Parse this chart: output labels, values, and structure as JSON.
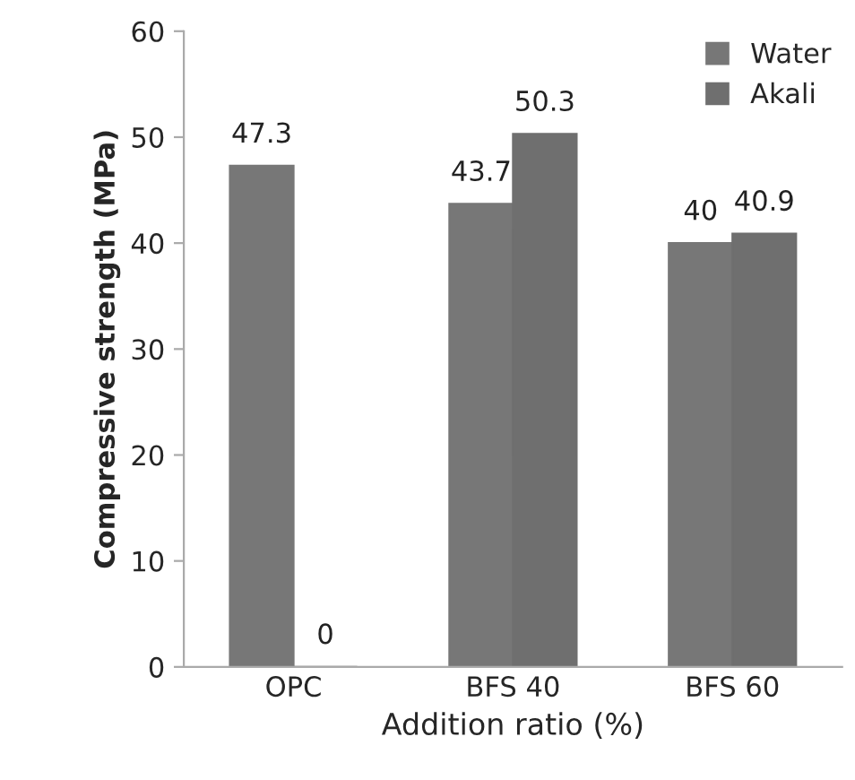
{
  "chart_data": {
    "type": "bar",
    "xlabel": "Addition ratio (%)",
    "ylabel": "Compressive strength (MPa)",
    "categories": [
      "OPC",
      "BFS 40",
      "BFS 60"
    ],
    "series": [
      {
        "name": "Water",
        "color": "#777777",
        "values": [
          47.3,
          43.7,
          40
        ]
      },
      {
        "name": "Akali",
        "color": "#6f6f6f",
        "values": [
          0,
          50.3,
          40.9
        ]
      }
    ],
    "ylim": [
      0,
      60
    ],
    "yticks": [
      0,
      10,
      20,
      30,
      40,
      50,
      60
    ],
    "data_labels": true,
    "grid": false,
    "legend": "top right"
  }
}
